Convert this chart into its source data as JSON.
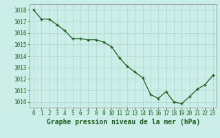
{
  "x": [
    0,
    1,
    2,
    3,
    4,
    5,
    6,
    7,
    8,
    9,
    10,
    11,
    12,
    13,
    14,
    15,
    16,
    17,
    18,
    19,
    20,
    21,
    22,
    23
  ],
  "y": [
    1018.0,
    1017.2,
    1017.2,
    1016.7,
    1016.2,
    1015.5,
    1015.5,
    1015.4,
    1015.4,
    1015.2,
    1014.8,
    1013.85,
    1013.1,
    1012.6,
    1012.1,
    1010.65,
    1010.3,
    1010.9,
    1010.0,
    1009.85,
    1010.45,
    1011.1,
    1011.5,
    1012.3
  ],
  "line_color": "#1a5c1a",
  "marker": "+",
  "bg_color": "#cceee8",
  "grid_color": "#b0d4ce",
  "title": "Graphe pression niveau de la mer (hPa)",
  "ylim_min": 1009.5,
  "ylim_max": 1018.5,
  "xlim_min": -0.5,
  "xlim_max": 23.5,
  "yticks": [
    1010,
    1011,
    1012,
    1013,
    1014,
    1015,
    1016,
    1017,
    1018
  ],
  "xticks": [
    0,
    1,
    2,
    3,
    4,
    5,
    6,
    7,
    8,
    9,
    10,
    11,
    12,
    13,
    14,
    15,
    16,
    17,
    18,
    19,
    20,
    21,
    22,
    23
  ],
  "tick_color": "#1a5c1a",
  "tick_fontsize": 5.5,
  "title_fontsize": 7.0,
  "title_color": "#1a5c1a",
  "spine_color": "#888888"
}
